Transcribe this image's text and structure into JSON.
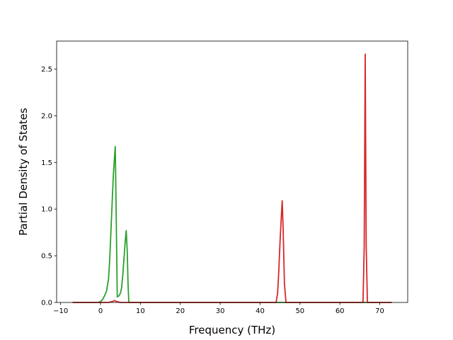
{
  "chart_data": {
    "type": "line",
    "title": "",
    "xlabel": "Frequency (THz)",
    "ylabel": "Partial Density of States",
    "xlim": [
      -11,
      77
    ],
    "ylim": [
      0,
      2.8
    ],
    "x_ticks": [
      -10,
      0,
      10,
      20,
      30,
      40,
      50,
      60,
      70
    ],
    "x_tick_labels": [
      "−10",
      "0",
      "10",
      "20",
      "30",
      "40",
      "50",
      "60",
      "70"
    ],
    "y_ticks": [
      0.0,
      0.5,
      1.0,
      1.5,
      2.0,
      2.5
    ],
    "y_tick_labels": [
      "0.0",
      "0.5",
      "1.0",
      "1.5",
      "2.0",
      "2.5"
    ],
    "grid": false,
    "series": [
      {
        "color": "#2ca02c",
        "x": [
          -7.0,
          -0.5,
          0.0,
          0.5,
          1.0,
          1.5,
          2.0,
          2.3,
          2.6,
          2.9,
          3.2,
          3.5,
          3.7,
          3.9,
          4.2,
          4.6,
          5.0,
          5.3,
          5.6,
          5.9,
          6.2,
          6.45,
          6.7,
          6.9,
          7.1,
          44.0,
          46.5,
          73.0
        ],
        "y": [
          0.0,
          0.0,
          0.01,
          0.03,
          0.07,
          0.12,
          0.25,
          0.45,
          0.75,
          1.05,
          1.35,
          1.55,
          1.67,
          1.05,
          0.06,
          0.07,
          0.1,
          0.16,
          0.3,
          0.48,
          0.66,
          0.77,
          0.55,
          0.2,
          0.0,
          0.0,
          0.0,
          0.0
        ]
      },
      {
        "color": "#d62728",
        "x": [
          -7.0,
          2.0,
          3.0,
          3.5,
          4.0,
          5.0,
          44.0,
          44.4,
          44.7,
          45.0,
          45.3,
          45.55,
          45.8,
          46.1,
          46.5,
          65.5,
          65.8,
          66.1,
          66.35,
          66.6,
          66.9,
          73.0
        ],
        "y": [
          0.0,
          0.0,
          0.01,
          0.02,
          0.01,
          0.0,
          0.0,
          0.1,
          0.35,
          0.65,
          0.9,
          1.09,
          0.75,
          0.2,
          0.0,
          0.0,
          0.0,
          0.6,
          2.66,
          0.6,
          0.0,
          0.0
        ]
      }
    ]
  }
}
